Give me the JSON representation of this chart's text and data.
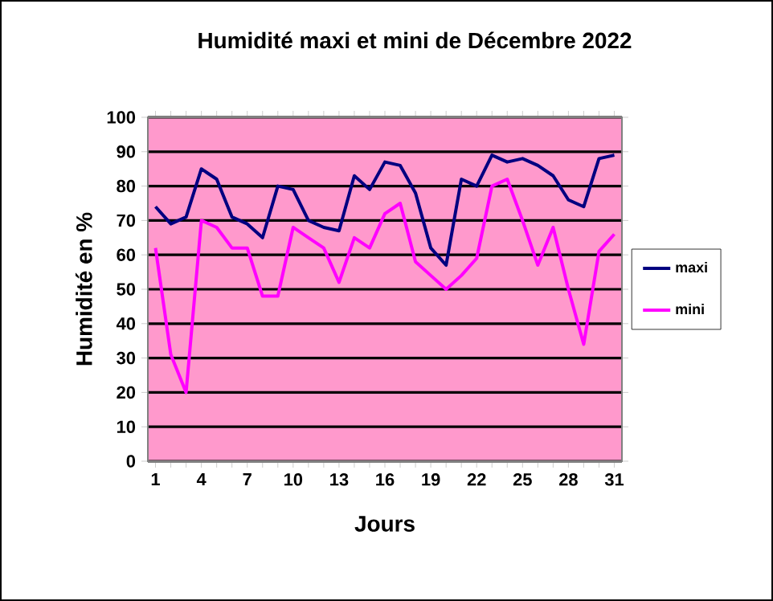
{
  "chart_data": {
    "type": "line",
    "title": "Humidité maxi et mini de Décembre 2022",
    "xlabel": "Jours",
    "ylabel": "Humidité en %",
    "categories": [
      "1",
      null,
      null,
      "4",
      null,
      null,
      "7",
      null,
      null,
      "10",
      null,
      null,
      "13",
      null,
      null,
      "16",
      null,
      null,
      "19",
      null,
      null,
      "22",
      null,
      null,
      "25",
      null,
      null,
      "28",
      null,
      null,
      "31"
    ],
    "series": [
      {
        "name": "maxi",
        "color": "#000080",
        "values": [
          74,
          69,
          71,
          85,
          82,
          71,
          69,
          65,
          80,
          79,
          70,
          68,
          67,
          83,
          79,
          87,
          86,
          78,
          62,
          57,
          82,
          80,
          89,
          87,
          88,
          86,
          83,
          76,
          74,
          88,
          89
        ]
      },
      {
        "name": "mini",
        "color": "#ff00ff",
        "values": [
          62,
          31,
          20,
          70,
          68,
          62,
          62,
          48,
          48,
          68,
          65,
          62,
          52,
          65,
          62,
          72,
          75,
          58,
          54,
          50,
          54,
          59,
          80,
          82,
          70,
          57,
          68,
          50,
          34,
          61,
          66
        ]
      }
    ],
    "ylim": [
      0,
      100
    ],
    "yticks": [
      0,
      10,
      20,
      30,
      40,
      50,
      60,
      70,
      80,
      90,
      100
    ],
    "grid": "y",
    "legend": "right",
    "marker": "none",
    "line_style": "solid"
  }
}
